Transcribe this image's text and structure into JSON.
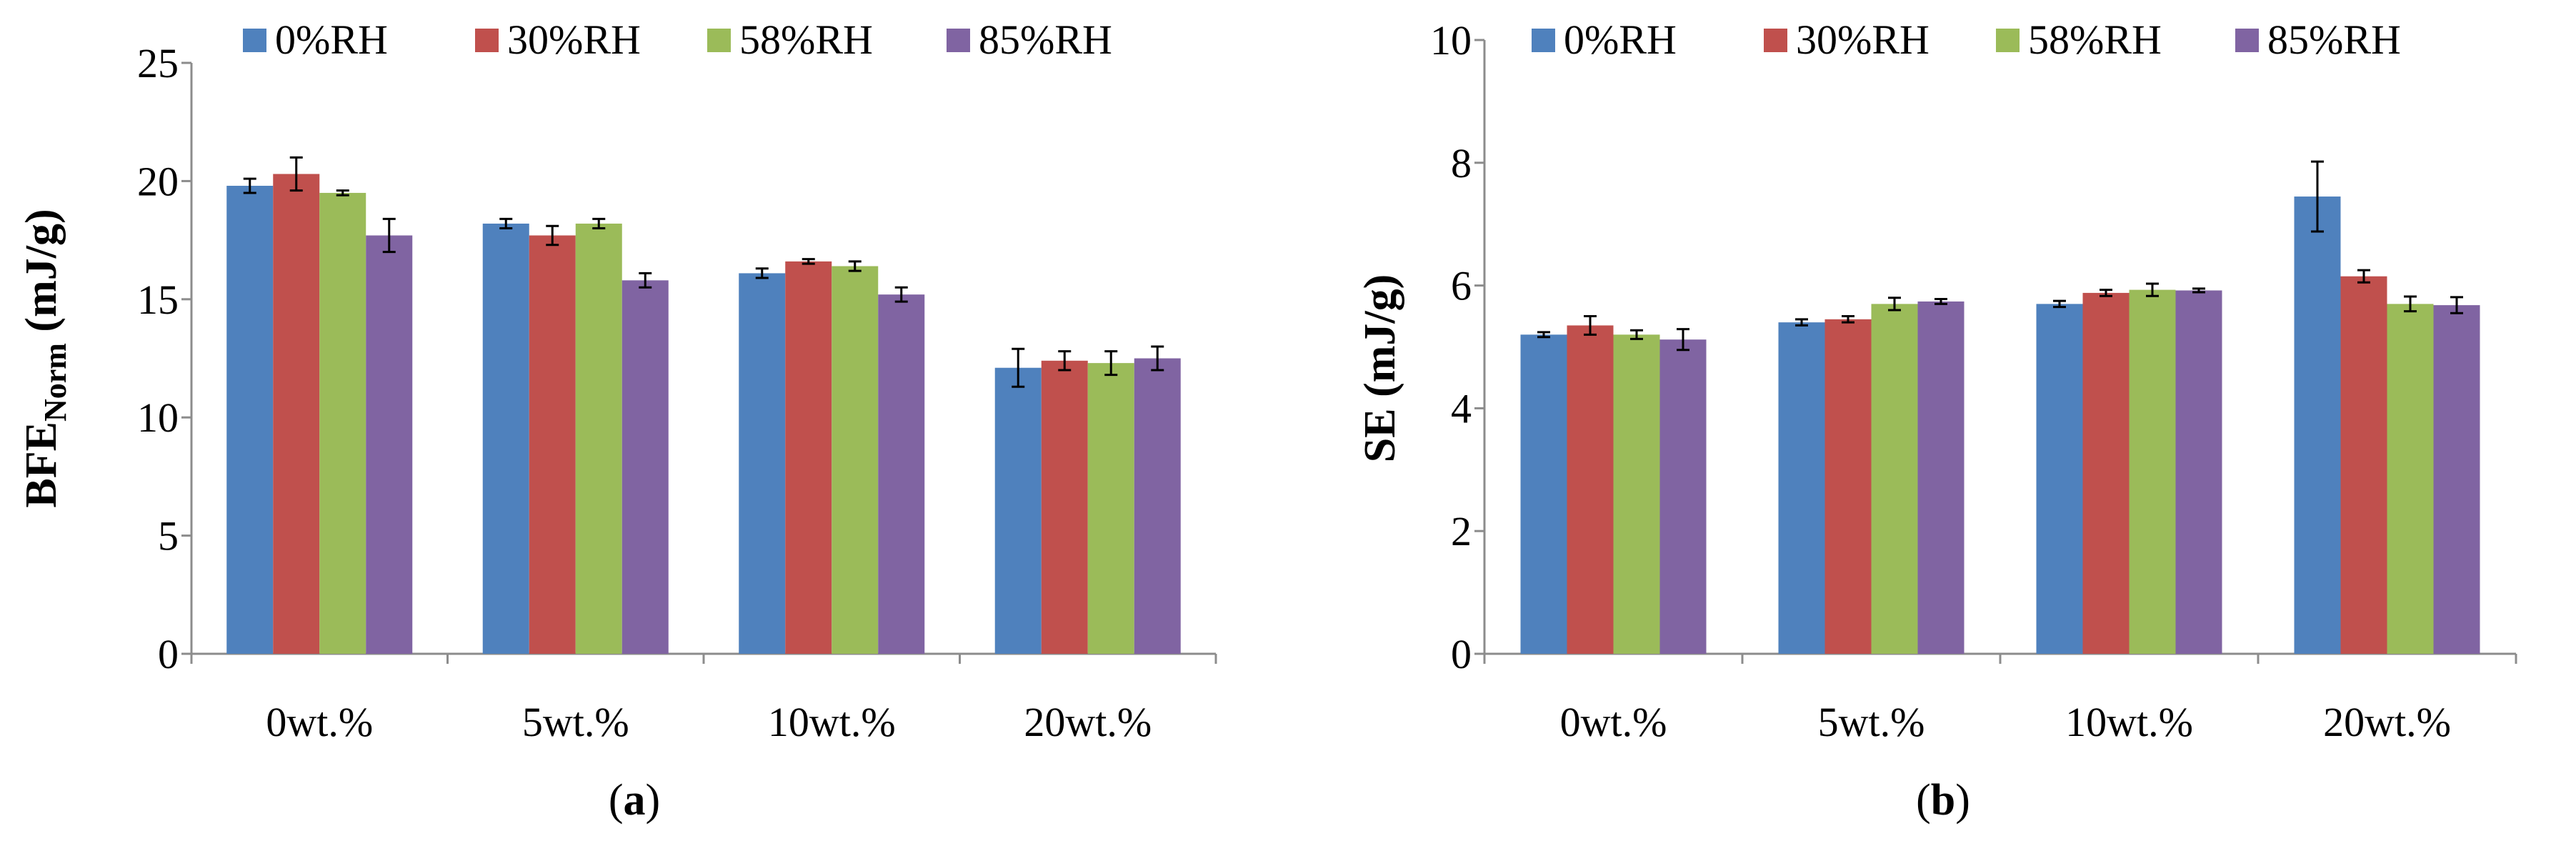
{
  "colors": {
    "series": [
      "#4f81bd",
      "#c0504d",
      "#9bbb59",
      "#8064a2"
    ],
    "axis": "#8c8c8c"
  },
  "chart_data": [
    {
      "type": "bar",
      "panel_label": "a",
      "title": "",
      "ylabel_main": "BFE",
      "ylabel_sub": "Norm",
      "ylabel_unit": " (mJ/g)",
      "xlabel": "",
      "categories": [
        "0wt.%",
        "5wt.%",
        "10wt.%",
        "20wt.%"
      ],
      "ylim": [
        0,
        25
      ],
      "yticks": [
        0,
        5,
        10,
        15,
        20,
        25
      ],
      "legend_position": "top",
      "series": [
        {
          "name": "0%RH",
          "values": [
            19.8,
            18.2,
            16.1,
            12.1
          ],
          "errors": [
            0.3,
            0.2,
            0.2,
            0.8
          ]
        },
        {
          "name": "30%RH",
          "values": [
            20.3,
            17.7,
            16.6,
            12.4
          ],
          "errors": [
            0.7,
            0.4,
            0.1,
            0.4
          ]
        },
        {
          "name": "58%RH",
          "values": [
            19.5,
            18.2,
            16.4,
            12.3
          ],
          "errors": [
            0.1,
            0.2,
            0.2,
            0.5
          ]
        },
        {
          "name": "85%RH",
          "values": [
            17.7,
            15.8,
            15.2,
            12.5
          ],
          "errors": [
            0.7,
            0.3,
            0.3,
            0.5
          ]
        }
      ]
    },
    {
      "type": "bar",
      "panel_label": "b",
      "title": "",
      "ylabel_main": "SE",
      "ylabel_sub": "",
      "ylabel_unit": " (mJ/g)",
      "xlabel": "",
      "categories": [
        "0wt.%",
        "5wt.%",
        "10wt.%",
        "20wt.%"
      ],
      "ylim": [
        0,
        10
      ],
      "yticks": [
        0,
        2,
        4,
        6,
        8,
        10
      ],
      "legend_position": "top",
      "series": [
        {
          "name": "0%RH",
          "values": [
            5.2,
            5.4,
            5.7,
            7.45
          ],
          "errors": [
            0.04,
            0.05,
            0.05,
            0.57
          ]
        },
        {
          "name": "30%RH",
          "values": [
            5.35,
            5.45,
            5.88,
            6.15
          ],
          "errors": [
            0.15,
            0.05,
            0.05,
            0.1
          ]
        },
        {
          "name": "58%RH",
          "values": [
            5.2,
            5.7,
            5.93,
            5.7
          ],
          "errors": [
            0.07,
            0.1,
            0.1,
            0.12
          ]
        },
        {
          "name": "85%RH",
          "values": [
            5.12,
            5.74,
            5.92,
            5.68
          ],
          "errors": [
            0.17,
            0.04,
            0.03,
            0.13
          ]
        }
      ]
    }
  ]
}
